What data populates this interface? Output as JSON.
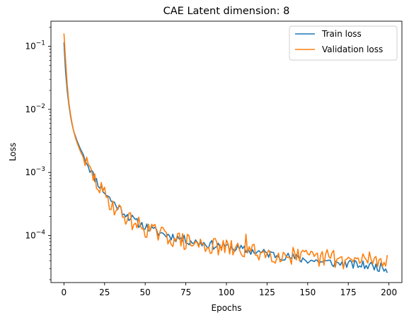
{
  "chart_data": {
    "type": "line",
    "title": "CAE Latent dimension: 8",
    "xlabel": "Epochs",
    "ylabel": "Loss",
    "yscale": "log",
    "xlim": [
      -8,
      208
    ],
    "ylim": [
      1.8e-05,
      0.25
    ],
    "x_ticks": [
      0,
      25,
      50,
      75,
      100,
      125,
      150,
      175,
      200
    ],
    "y_ticks": [
      {
        "value": 0.1,
        "base": "10",
        "exp": "−1"
      },
      {
        "value": 0.01,
        "base": "10",
        "exp": "−2"
      },
      {
        "value": 0.001,
        "base": "10",
        "exp": "−3"
      },
      {
        "value": 0.0001,
        "base": "10",
        "exp": "−4"
      }
    ],
    "legend_position": "top-right",
    "grid": false,
    "series": [
      {
        "name": "Train loss",
        "color": "#1f77b4",
        "anchors": [
          [
            0,
            0.115
          ],
          [
            1,
            0.04
          ],
          [
            2,
            0.02
          ],
          [
            3,
            0.012
          ],
          [
            4,
            0.008
          ],
          [
            5,
            0.0058
          ],
          [
            6,
            0.0045
          ],
          [
            7,
            0.0038
          ],
          [
            8,
            0.0032
          ],
          [
            10,
            0.0024
          ],
          [
            12,
            0.0019
          ],
          [
            15,
            0.0013
          ],
          [
            18,
            0.0009
          ],
          [
            20,
            0.00075
          ],
          [
            22,
            0.00062
          ],
          [
            25,
            0.00049
          ],
          [
            28,
            0.00039
          ],
          [
            30,
            0.00034
          ],
          [
            35,
            0.00026
          ],
          [
            40,
            0.0002
          ],
          [
            45,
            0.00016
          ],
          [
            50,
            0.00014
          ],
          [
            55,
            0.00012
          ],
          [
            60,
            0.000108
          ],
          [
            65,
            0.0001
          ],
          [
            70,
            9.2e-05
          ],
          [
            75,
            8.5e-05
          ],
          [
            80,
            8e-05
          ],
          [
            90,
            7.2e-05
          ],
          [
            100,
            6.6e-05
          ],
          [
            110,
            6e-05
          ],
          [
            125,
            5.2e-05
          ],
          [
            140,
            4.5e-05
          ],
          [
            150,
            4.1e-05
          ],
          [
            160,
            3.8e-05
          ],
          [
            175,
            3.5e-05
          ],
          [
            190,
            3.3e-05
          ],
          [
            199,
            3e-05
          ]
        ],
        "noise": 0.07,
        "seed": 11
      },
      {
        "name": "Validation loss",
        "color": "#ff7f0e",
        "anchors": [
          [
            0,
            0.16
          ],
          [
            1,
            0.06
          ],
          [
            2,
            0.025
          ],
          [
            3,
            0.013
          ],
          [
            4,
            0.0085
          ],
          [
            5,
            0.006
          ],
          [
            6,
            0.0045
          ],
          [
            7,
            0.0036
          ],
          [
            8,
            0.003
          ],
          [
            10,
            0.0022
          ],
          [
            12,
            0.0017
          ],
          [
            15,
            0.0012
          ],
          [
            18,
            0.00085
          ],
          [
            20,
            0.00068
          ],
          [
            22,
            0.00056
          ],
          [
            25,
            0.00044
          ],
          [
            28,
            0.00035
          ],
          [
            30,
            0.0003
          ],
          [
            35,
            0.00023
          ],
          [
            40,
            0.00018
          ],
          [
            45,
            0.00015
          ],
          [
            50,
            0.00013
          ],
          [
            55,
            0.000115
          ],
          [
            60,
            0.000102
          ],
          [
            65,
            9.4e-05
          ],
          [
            70,
            8.6e-05
          ],
          [
            75,
            7.9e-05
          ],
          [
            80,
            7.4e-05
          ],
          [
            90,
            6.8e-05
          ],
          [
            100,
            6.3e-05
          ],
          [
            110,
            5.8e-05
          ],
          [
            125,
            5.2e-05
          ],
          [
            140,
            4.7e-05
          ],
          [
            150,
            4.4e-05
          ],
          [
            160,
            4.2e-05
          ],
          [
            175,
            4e-05
          ],
          [
            190,
            3.9e-05
          ],
          [
            199,
            4e-05
          ]
        ],
        "noise": 0.14,
        "seed": 29,
        "spikes": [
          [
            112,
            0.000105
          ],
          [
            141,
            6.5e-05
          ],
          [
            162,
            6e-05
          ],
          [
            166,
            5.8e-05
          ],
          [
            188,
            5.5e-05
          ],
          [
            199,
            4.9e-05
          ]
        ]
      }
    ]
  }
}
